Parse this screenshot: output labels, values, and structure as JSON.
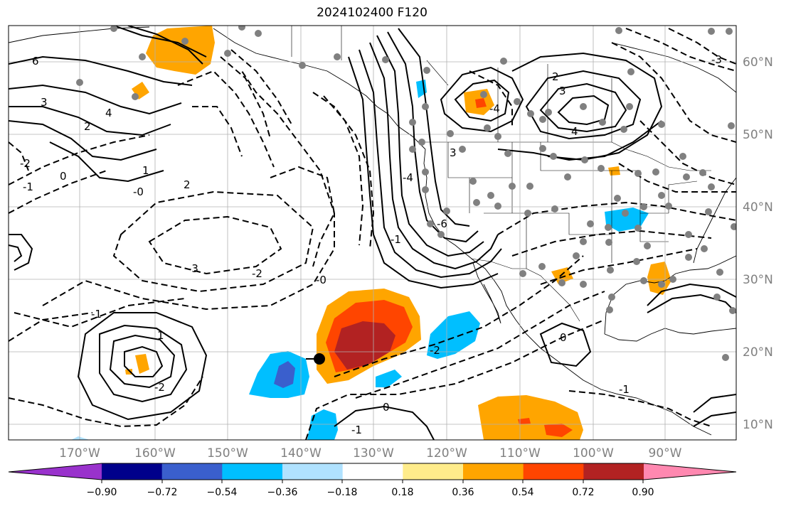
{
  "title": "2024102400 F120",
  "map": {
    "lon_ticks": [
      "170°W",
      "160°W",
      "150°W",
      "140°W",
      "130°W",
      "120°W",
      "110°W",
      "100°W",
      "90°W"
    ],
    "lat_ticks": [
      "60°N",
      "50°N",
      "40°N",
      "30°N",
      "20°N",
      "10°N"
    ],
    "contour_labels": [
      "6",
      "3",
      "2",
      "4",
      "-2",
      "-1",
      "0",
      "-0",
      "1",
      "2",
      "-3",
      "-2",
      "-1",
      "-0",
      "-1",
      "0",
      "1",
      "-2",
      "2",
      "3",
      "4",
      "3",
      "-4",
      "-6",
      "-3",
      "-2",
      "-1",
      "-4",
      "-1",
      "0"
    ],
    "marker_colors": {
      "station": "#808080",
      "point": "#000000"
    }
  },
  "colorbar": {
    "ticks": [
      "−0.90",
      "−0.72",
      "−0.54",
      "−0.36",
      "−0.18",
      "0.18",
      "0.36",
      "0.54",
      "0.72",
      "0.90"
    ],
    "colors": [
      "#9932cc",
      "#00008b",
      "#3a5fcd",
      "#00bfff",
      "#b0e2ff",
      "#ffffff",
      "#ffec8b",
      "#ffa500",
      "#ff4500",
      "#b22222",
      "#ff88b0"
    ]
  }
}
